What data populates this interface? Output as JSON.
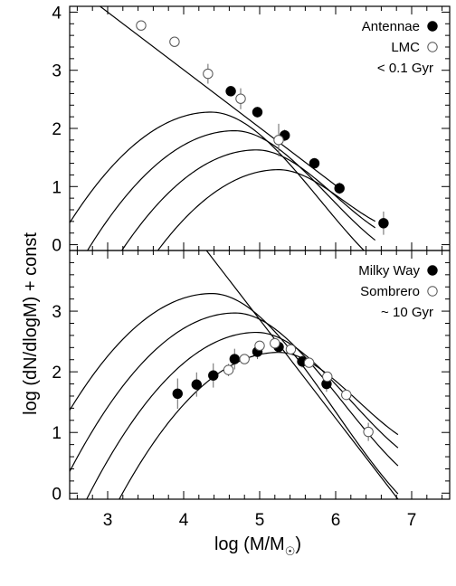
{
  "chart_data": [
    {
      "type": "line",
      "panel": "top",
      "xlim": [
        2.5,
        7.5
      ],
      "ylim": [
        -0.1,
        4.1
      ],
      "yticks": [
        "0",
        "1",
        "2",
        "3",
        "4"
      ],
      "xticks": [],
      "legend": [
        {
          "label": "Antennae",
          "marker": "filled-circle"
        },
        {
          "label": "LMC",
          "marker": "open-circle"
        },
        {
          "label": "< 0.1 Gyr",
          "marker": "none"
        }
      ],
      "legend_position": "top-right",
      "power_law": {
        "x": [
          2.9,
          6.0
        ],
        "y": [
          4.1,
          1.02
        ]
      },
      "curves": [
        {
          "peak_x": 4.36,
          "peak_y": 2.28
        },
        {
          "peak_x": 4.67,
          "peak_y": 1.96
        },
        {
          "peak_x": 4.96,
          "peak_y": 1.63
        },
        {
          "peak_x": 5.25,
          "peak_y": 1.29
        }
      ],
      "curve_cutoff_x": 6.52,
      "series": [
        {
          "name": "Antennae",
          "marker": "filled-circle",
          "points": [
            {
              "x": 4.62,
              "y": 2.64,
              "err": 0.09
            },
            {
              "x": 4.97,
              "y": 2.28,
              "err": 0.09
            },
            {
              "x": 5.33,
              "y": 1.88,
              "err": 0.1
            },
            {
              "x": 5.72,
              "y": 1.4,
              "err": 0.09
            },
            {
              "x": 6.05,
              "y": 0.97,
              "err": 0.1
            },
            {
              "x": 6.63,
              "y": 0.37,
              "err": 0.2
            }
          ]
        },
        {
          "name": "LMC",
          "marker": "open-circle",
          "points": [
            {
              "x": 3.44,
              "y": 3.77,
              "err": 0.08
            },
            {
              "x": 3.88,
              "y": 3.49,
              "err": 0.08
            },
            {
              "x": 4.32,
              "y": 2.94,
              "err": 0.17
            },
            {
              "x": 4.75,
              "y": 2.51,
              "err": 0.18
            },
            {
              "x": 5.25,
              "y": 1.8,
              "err": 0.28
            }
          ]
        }
      ]
    },
    {
      "type": "line",
      "panel": "bottom",
      "xlim": [
        2.5,
        7.5
      ],
      "ylim": [
        -0.1,
        4.0
      ],
      "yticks": [
        "0",
        "1",
        "2",
        "3"
      ],
      "xticks": [
        "3",
        "4",
        "5",
        "6",
        "7"
      ],
      "xlabel": "log (M/M",
      "xlabel_sub": "☉",
      "xlabel_close": ")",
      "ylabel": "log (dN/dlogM) + const",
      "legend": [
        {
          "label": "Milky Way",
          "marker": "filled-circle"
        },
        {
          "label": "Sombrero",
          "marker": "open-circle"
        },
        {
          "label": "~ 10 Gyr",
          "marker": "none"
        }
      ],
      "legend_position": "top-right",
      "power_law": {
        "x": [
          4.3,
          6.82
        ],
        "y": [
          4.0,
          -0.1
        ]
      },
      "curves": [
        {
          "peak_x": 4.37,
          "peak_y": 3.29
        },
        {
          "peak_x": 4.68,
          "peak_y": 2.97
        },
        {
          "peak_x": 4.96,
          "peak_y": 2.65
        },
        {
          "peak_x": 5.25,
          "peak_y": 2.32
        }
      ],
      "curve_cutoff_x": 6.82,
      "series": [
        {
          "name": "Milky Way",
          "marker": "filled-circle",
          "points": [
            {
              "x": 3.92,
              "y": 1.64,
              "err": 0.25
            },
            {
              "x": 4.17,
              "y": 1.79,
              "err": 0.2
            },
            {
              "x": 4.39,
              "y": 1.94,
              "err": 0.2
            },
            {
              "x": 4.67,
              "y": 2.21,
              "err": 0.17
            },
            {
              "x": 4.97,
              "y": 2.33,
              "err": 0.12
            },
            {
              "x": 5.25,
              "y": 2.41,
              "err": 0.1
            },
            {
              "x": 5.56,
              "y": 2.17,
              "err": 0.1
            },
            {
              "x": 5.88,
              "y": 1.8,
              "err": 0.13
            }
          ]
        },
        {
          "name": "Sombrero",
          "marker": "open-circle",
          "points": [
            {
              "x": 4.59,
              "y": 2.03,
              "err": 0.1
            },
            {
              "x": 4.8,
              "y": 2.21,
              "err": 0.08
            },
            {
              "x": 5.0,
              "y": 2.43,
              "err": 0.08
            },
            {
              "x": 5.2,
              "y": 2.47,
              "err": 0.08
            },
            {
              "x": 5.41,
              "y": 2.37,
              "err": 0.08
            },
            {
              "x": 5.65,
              "y": 2.15,
              "err": 0.08
            },
            {
              "x": 5.89,
              "y": 1.92,
              "err": 0.08
            },
            {
              "x": 6.14,
              "y": 1.62,
              "err": 0.08
            },
            {
              "x": 6.43,
              "y": 1.01,
              "err": 0.15
            }
          ]
        }
      ]
    }
  ]
}
